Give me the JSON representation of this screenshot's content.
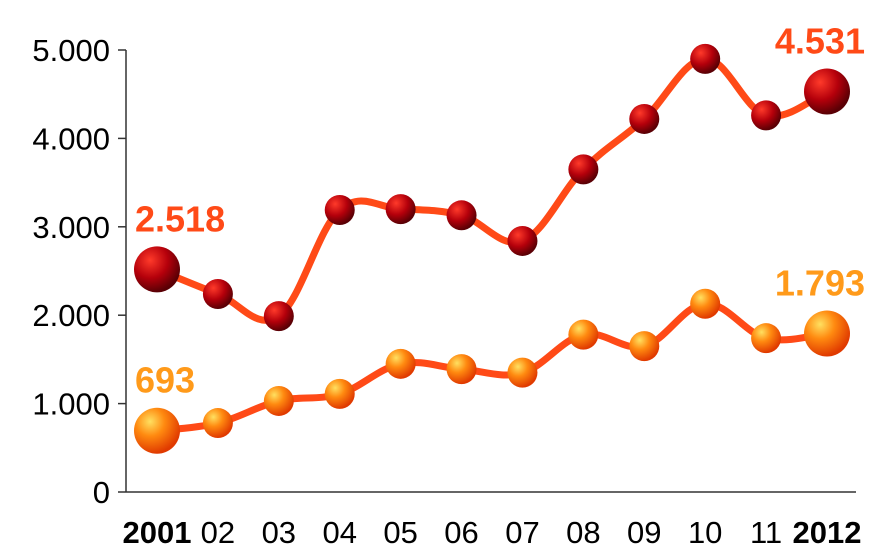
{
  "chart_data": {
    "type": "line",
    "categories": [
      "2001",
      "02",
      "03",
      "04",
      "05",
      "06",
      "07",
      "08",
      "09",
      "10",
      "11",
      "2012"
    ],
    "bold_categories": [
      "2001",
      "2012"
    ],
    "y_ticks": [
      "0",
      "1.000",
      "2.000",
      "3.000",
      "4.000",
      "5.000"
    ],
    "y_tick_values": [
      0,
      1000,
      2000,
      3000,
      4000,
      5000
    ],
    "ylim": [
      0,
      5000
    ],
    "grid": false,
    "legend": "none",
    "series": [
      {
        "values": [
          2518,
          2240,
          1990,
          3190,
          3200,
          3130,
          2840,
          3650,
          4220,
          4900,
          4260,
          4531
        ],
        "line_color": "#ff4a17",
        "marker_color": "#b5000b",
        "labels": [
          {
            "index": 0,
            "text": "2.518",
            "color": "#ff4a17"
          },
          {
            "index": 11,
            "text": "4.531",
            "color": "#ff4a17"
          }
        ]
      },
      {
        "values": [
          693,
          780,
          1030,
          1110,
          1450,
          1390,
          1350,
          1780,
          1650,
          2130,
          1740,
          1793
        ],
        "line_color": "#ff4a17",
        "marker_color": "#ff6a00",
        "labels": [
          {
            "index": 0,
            "text": "693",
            "color": "#ff9a1a"
          },
          {
            "index": 11,
            "text": "1.793",
            "color": "#ff9a1a"
          }
        ]
      }
    ]
  }
}
